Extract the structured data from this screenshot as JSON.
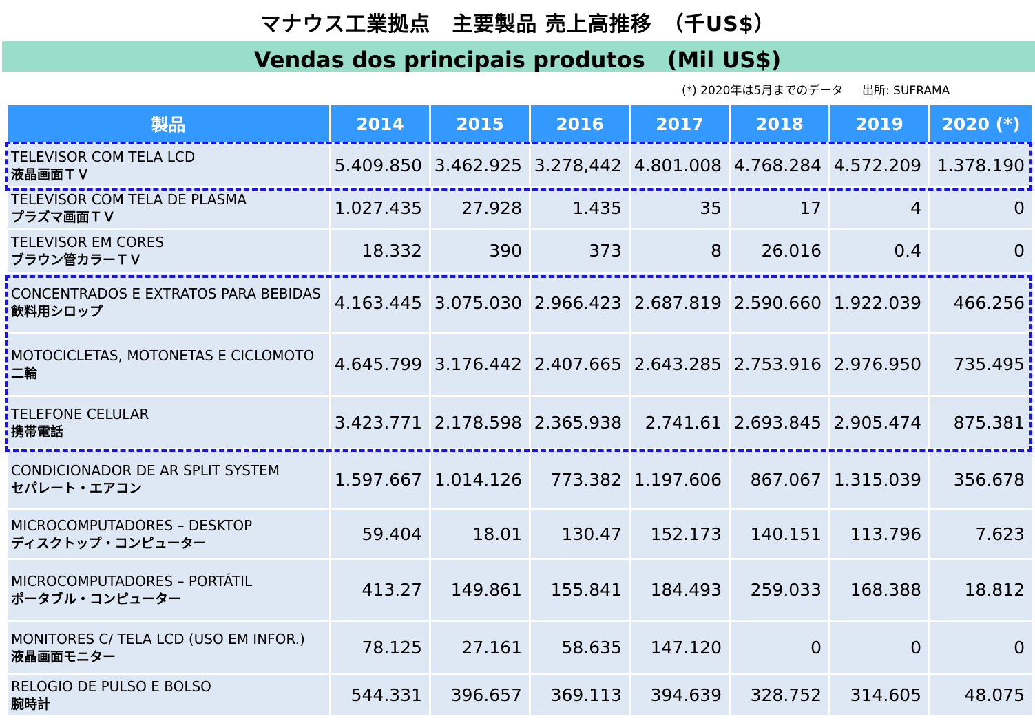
{
  "title_jp": "マナウス工業拠点　主要製品 売上高推移　（千US$）",
  "title_pt": "Vendas dos principais produtos　(Mil US$)",
  "note": "(*) 2020年は5月までのデータ　  出所: SUFRAMA",
  "table": {
    "headers": [
      "製品",
      "2014",
      "2015",
      "2016",
      "2017",
      "2018",
      "2019",
      "2020 (*)"
    ],
    "rows": [
      {
        "pt": "TELEVISOR COM TELA LCD",
        "jp": "液晶画面ＴＶ",
        "values": [
          "5.409.850",
          "3.462.925",
          "3.278,442",
          "4.801.008",
          "4.768.284",
          "4.572.209",
          "1.378.190"
        ]
      },
      {
        "pt": "TELEVISOR COM TELA DE PLASMA",
        "jp": "プラズマ画面ＴＶ",
        "values": [
          "1.027.435",
          "27.928",
          "1.435",
          "35",
          "17",
          "4",
          "0"
        ]
      },
      {
        "pt": "TELEVISOR EM CORES",
        "jp": "ブラウン管カラーＴＶ",
        "values": [
          "18.332",
          "390",
          "373",
          "8",
          "26.016",
          "0.4",
          "0"
        ]
      },
      {
        "pt": "CONCENTRADOS E EXTRATOS PARA BEBIDAS",
        "jp": "飲料用シロップ",
        "values": [
          "4.163.445",
          "3.075.030",
          "2.966.423",
          "2.687.819",
          "2.590.660",
          "1.922.039",
          "466.256"
        ]
      },
      {
        "pt": "MOTOCICLETAS, MOTONETAS E CICLOMOTO",
        "jp": "二輪",
        "values": [
          "4.645.799",
          "3.176.442",
          "2.407.665",
          "2.643.285",
          "2.753.916",
          "2.976.950",
          "735.495"
        ]
      },
      {
        "pt": "TELEFONE CELULAR",
        "jp": "携帯電話",
        "values": [
          "3.423.771",
          "2.178.598",
          "2.365.938",
          "2.741.61",
          "2.693.845",
          "2.905.474",
          "875.381"
        ]
      },
      {
        "pt": "CONDICIONADOR DE AR SPLIT SYSTEM",
        "jp": "セパレート・エアコン",
        "values": [
          "1.597.667",
          "1.014.126",
          "773.382",
          "1.197.606",
          "867.067",
          "1.315.039",
          "356.678"
        ]
      },
      {
        "pt": "MICROCOMPUTADORES – DESKTOP",
        "jp": "ディスクトップ・コンピューター",
        "values": [
          "59.404",
          "18.01",
          "130.47",
          "152.173",
          "140.151",
          "113.796",
          "7.623"
        ]
      },
      {
        "pt": "MICROCOMPUTADORES – PORTÁTIL",
        "jp": "ポータブル・コンピューター",
        "values": [
          "413.27",
          "149.861",
          "155.841",
          "184.493",
          "259.033",
          "168.388",
          "18.812"
        ]
      },
      {
        "pt": "MONITORES C/ TELA LCD (USO EM INFOR.)",
        "jp": "液晶画面モニター",
        "values": [
          "78.125",
          "27.161",
          "58.635",
          "147.120",
          "0",
          "0",
          "0"
        ]
      },
      {
        "pt": "RELOGIO DE PULSO E BOLSO",
        "jp": "腕時計",
        "values": [
          "544.331",
          "396.657",
          "369.113",
          "394.639",
          "328.752",
          "314.605",
          "48.075"
        ]
      }
    ]
  },
  "colors": {
    "header_bg": "#3399ff",
    "row_bg": "#dde8f4",
    "title_band": "#99dec8",
    "highlight_border": "#1a14e6"
  }
}
